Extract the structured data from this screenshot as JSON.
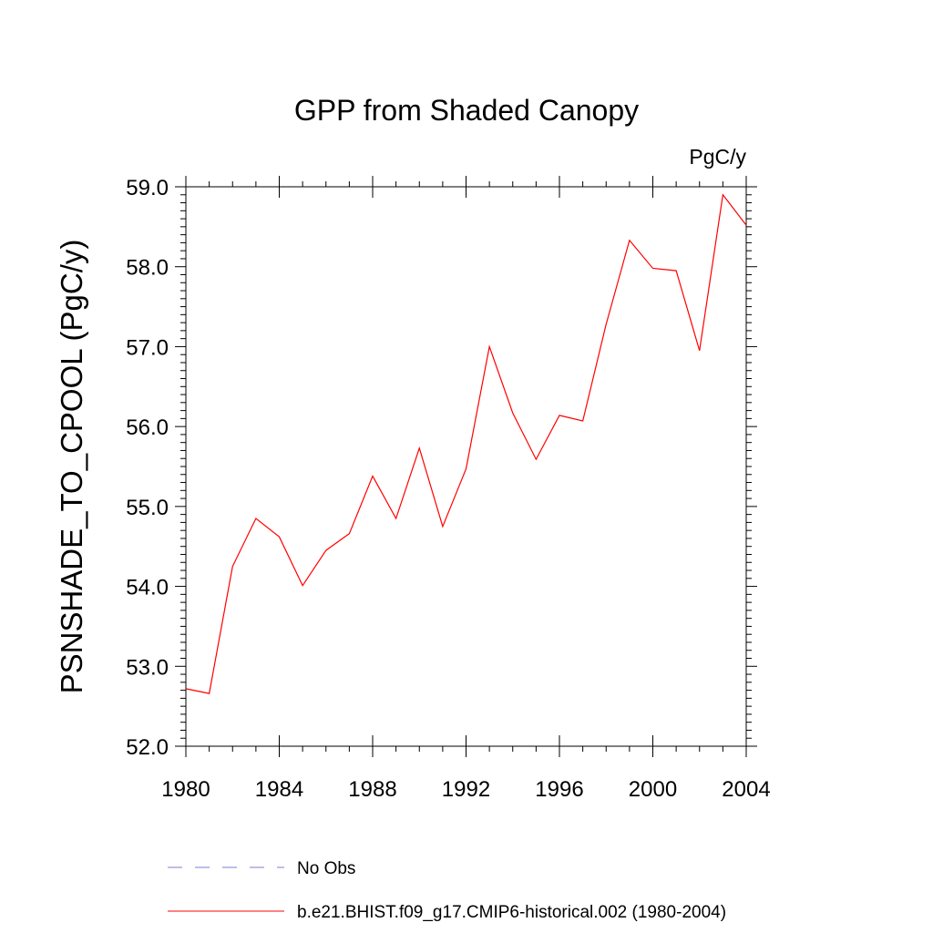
{
  "chart_data": {
    "type": "line",
    "title": "GPP from Shaded Canopy",
    "units": "PgC/y",
    "ylabel": "PSNSHADE_TO_CPOOL  (PgC/y)",
    "xlabel": "",
    "xlim": [
      1980,
      2004
    ],
    "ylim": [
      52.0,
      59.0
    ],
    "x_ticks": [
      "1980",
      "1984",
      "1988",
      "1992",
      "1996",
      "2000",
      "2004"
    ],
    "y_ticks": [
      "52.0",
      "53.0",
      "54.0",
      "55.0",
      "56.0",
      "57.0",
      "58.0",
      "59.0"
    ],
    "grid": false,
    "series": [
      {
        "name": "b.e21.BHIST.f09_g17.CMIP6-historical.002 (1980-2004)",
        "color": "#ff0000",
        "dash": "solid",
        "x": [
          1980,
          1981,
          1982,
          1983,
          1984,
          1985,
          1986,
          1987,
          1988,
          1989,
          1990,
          1991,
          1992,
          1993,
          1994,
          1995,
          1996,
          1997,
          1998,
          1999,
          2000,
          2001,
          2002,
          2003,
          2004
        ],
        "y": [
          52.72,
          52.66,
          54.25,
          54.85,
          54.62,
          54.01,
          54.45,
          54.66,
          55.38,
          54.85,
          55.73,
          54.75,
          55.47,
          57.0,
          56.17,
          55.59,
          56.14,
          56.07,
          57.28,
          58.33,
          57.98,
          57.95,
          56.95,
          58.9,
          58.52
        ]
      }
    ],
    "legend": {
      "placement": "bottom",
      "entries": [
        {
          "label": "No Obs",
          "color": "#7b7bd6",
          "dash": "dashed"
        },
        {
          "label": "b.e21.BHIST.f09_g17.CMIP6-historical.002 (1980-2004)",
          "color": "#ff0000",
          "dash": "solid"
        }
      ]
    }
  }
}
